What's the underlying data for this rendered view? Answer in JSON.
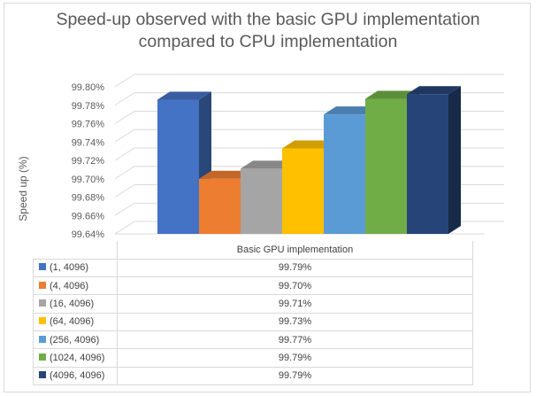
{
  "chart_data": {
    "type": "bar",
    "title_line1": "Speed-up observed with the basic GPU implementation",
    "title_line2": "compared to CPU implementation",
    "xlabel": "",
    "ylabel": "Speed up (%)",
    "ylim": [
      99.64,
      99.8
    ],
    "yticks": [
      "99.64%",
      "99.66%",
      "99.68%",
      "99.70%",
      "99.72%",
      "99.74%",
      "99.76%",
      "99.78%",
      "99.80%"
    ],
    "category": "Basic GPU implementation",
    "series": [
      {
        "name": "(1, 4096)",
        "value": 99.786,
        "label": "99.79%",
        "color": "#4472c4"
      },
      {
        "name": "(4, 4096)",
        "value": 99.7,
        "label": "99.70%",
        "color": "#ed7d31"
      },
      {
        "name": "(16, 4096)",
        "value": 99.711,
        "label": "99.71%",
        "color": "#a5a5a5"
      },
      {
        "name": "(64, 4096)",
        "value": 99.733,
        "label": "99.73%",
        "color": "#ffc000"
      },
      {
        "name": "(256, 4096)",
        "value": 99.77,
        "label": "99.77%",
        "color": "#5b9bd5"
      },
      {
        "name": "(1024, 4096)",
        "value": 99.787,
        "label": "99.79%",
        "color": "#70ad47"
      },
      {
        "name": "(4096, 4096)",
        "value": 99.792,
        "label": "99.79%",
        "color": "#264478"
      }
    ],
    "grid": true,
    "legend": "data-table"
  }
}
